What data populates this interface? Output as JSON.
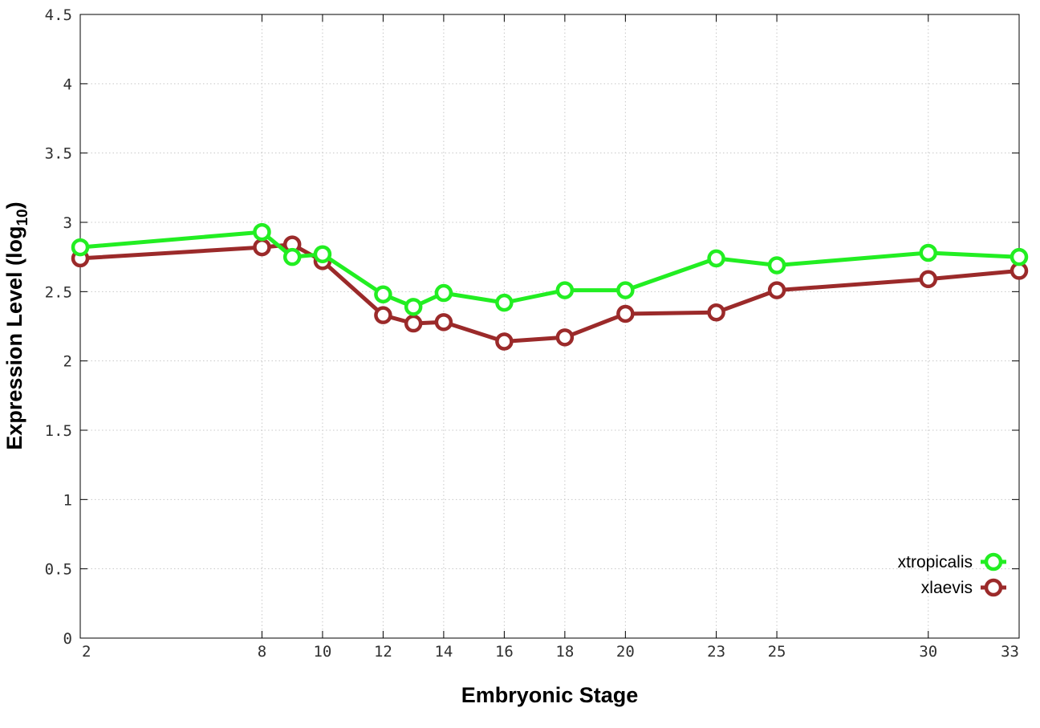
{
  "chart_data": {
    "type": "line",
    "xlabel": "Embryonic Stage",
    "ylabel_main": "Expression Level (log",
    "ylabel_sub": "10",
    "ylabel_close": ")",
    "xlim": [
      2,
      33
    ],
    "ylim": [
      0,
      4.5
    ],
    "grid": true,
    "legend_position": "bottom-right",
    "x_ticks": [
      2,
      8,
      10,
      12,
      14,
      16,
      18,
      20,
      23,
      25,
      30,
      33
    ],
    "x_tick_labels": [
      "2",
      "8",
      "10",
      "12",
      "14",
      "16",
      "18",
      "20",
      "23",
      "25",
      "30",
      "33"
    ],
    "y_ticks": [
      0,
      0.5,
      1,
      1.5,
      2,
      2.5,
      3,
      3.5,
      4,
      4.5
    ],
    "y_tick_labels": [
      "0",
      "0.5",
      "1",
      "1.5",
      "2",
      "2.5",
      "3",
      "3.5",
      "4",
      "4.5"
    ],
    "series": [
      {
        "name": "xtropicalis",
        "color": "#22ee22",
        "x": [
          2,
          8,
          9,
          10,
          12,
          13,
          14,
          16,
          18,
          20,
          23,
          25,
          30,
          33
        ],
        "values": [
          2.82,
          2.93,
          2.75,
          2.77,
          2.48,
          2.39,
          2.49,
          2.42,
          2.51,
          2.51,
          2.74,
          2.69,
          2.78,
          2.75
        ]
      },
      {
        "name": "xlaevis",
        "color": "#9b2a2a",
        "x": [
          2,
          8,
          9,
          10,
          12,
          13,
          14,
          16,
          18,
          20,
          23,
          25,
          30,
          33
        ],
        "values": [
          2.74,
          2.82,
          2.84,
          2.72,
          2.33,
          2.27,
          2.28,
          2.14,
          2.17,
          2.34,
          2.35,
          2.51,
          2.59,
          2.65
        ]
      }
    ]
  }
}
